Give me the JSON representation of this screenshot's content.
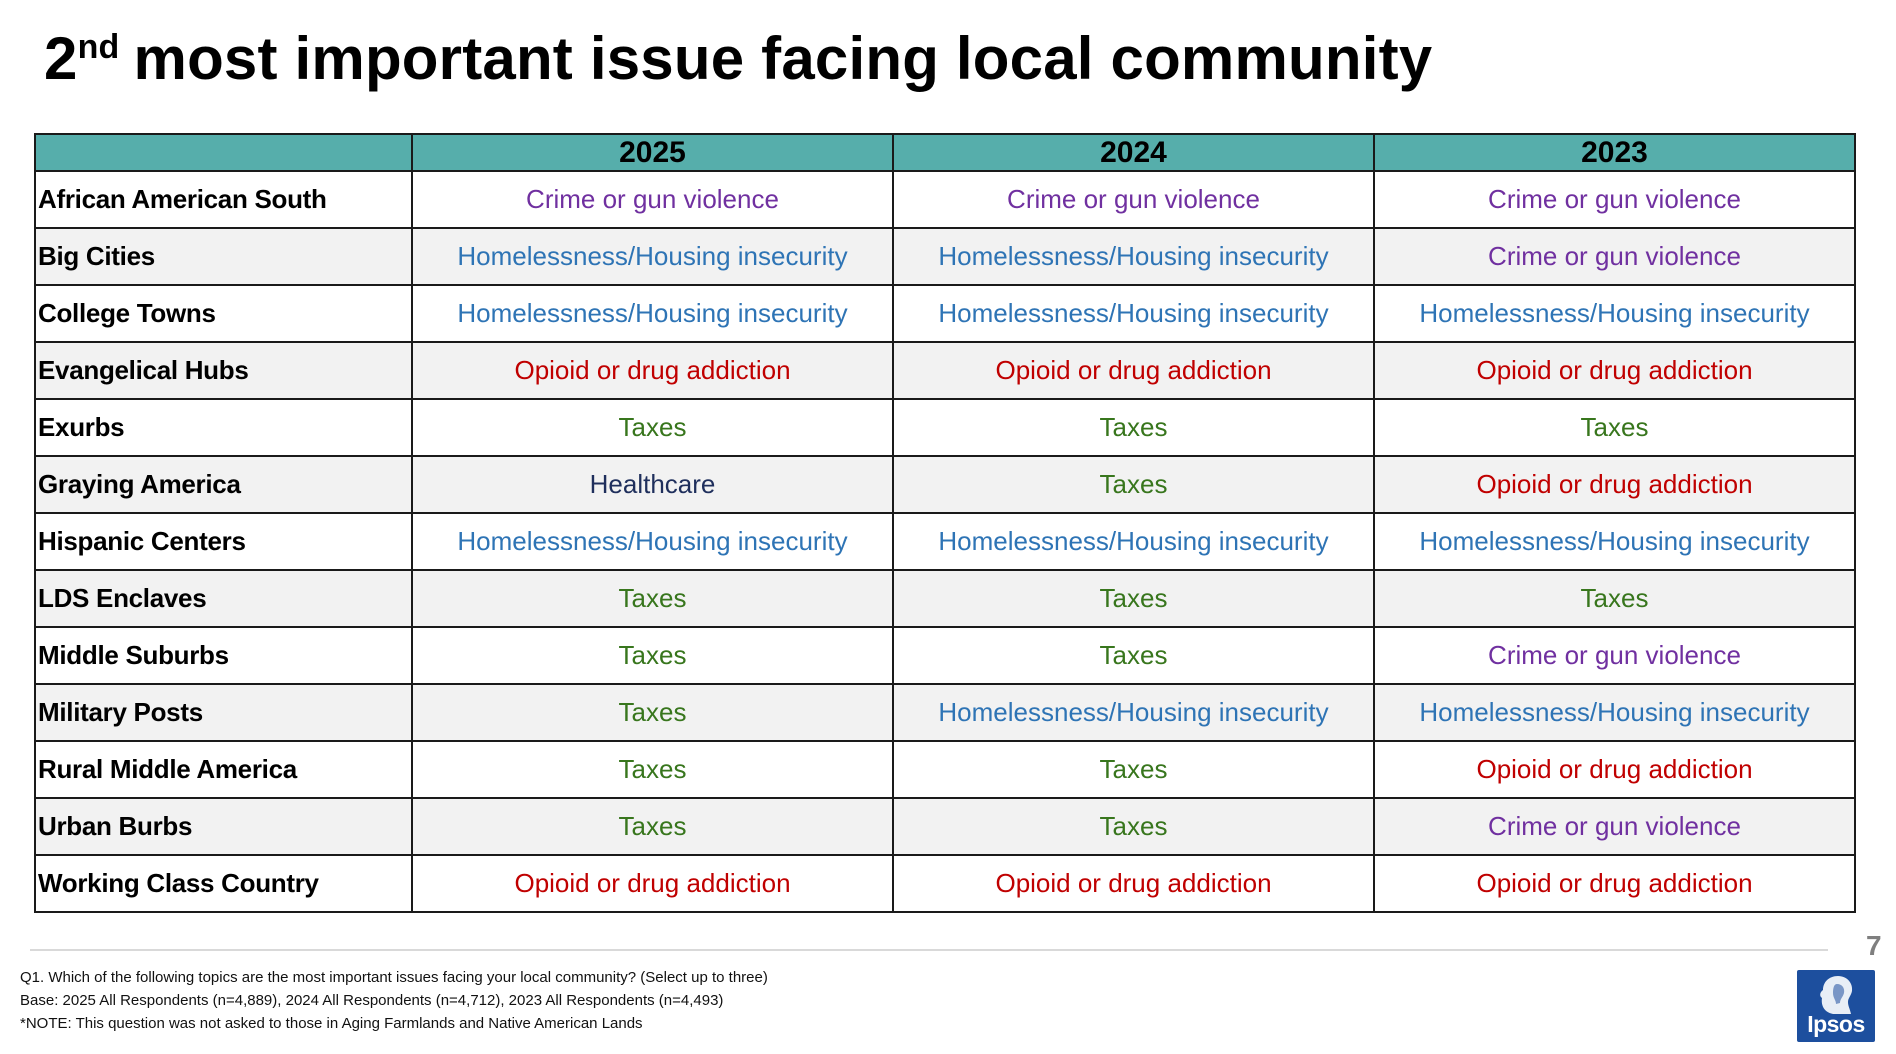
{
  "title": {
    "main": "2",
    "superscript": "nd",
    "rest": "most important issue facing local community"
  },
  "table": {
    "headers": [
      "2025",
      "2024",
      "2023"
    ],
    "rows": [
      {
        "label": "African American South",
        "values": [
          "Crime or gun violence",
          "Crime or gun violence",
          "Crime or gun violence"
        ]
      },
      {
        "label": "Big Cities",
        "values": [
          "Homelessness/Housing insecurity",
          "Homelessness/Housing insecurity",
          "Crime or gun violence"
        ]
      },
      {
        "label": "College Towns",
        "values": [
          "Homelessness/Housing insecurity",
          "Homelessness/Housing insecurity",
          "Homelessness/Housing insecurity"
        ]
      },
      {
        "label": "Evangelical Hubs",
        "values": [
          "Opioid or drug addiction",
          "Opioid or drug addiction",
          "Opioid or drug addiction"
        ]
      },
      {
        "label": "Exurbs",
        "values": [
          "Taxes",
          "Taxes",
          "Taxes"
        ]
      },
      {
        "label": "Graying America",
        "values": [
          "Healthcare",
          "Taxes",
          "Opioid or drug addiction"
        ]
      },
      {
        "label": "Hispanic Centers",
        "values": [
          "Homelessness/Housing insecurity",
          "Homelessness/Housing insecurity",
          "Homelessness/Housing insecurity"
        ]
      },
      {
        "label": "LDS Enclaves",
        "values": [
          "Taxes",
          "Taxes",
          "Taxes"
        ]
      },
      {
        "label": "Middle Suburbs",
        "values": [
          "Taxes",
          "Taxes",
          "Crime or gun violence"
        ]
      },
      {
        "label": "Military Posts",
        "values": [
          "Taxes",
          "Homelessness/Housing insecurity",
          "Homelessness/Housing insecurity"
        ]
      },
      {
        "label": "Rural Middle America",
        "values": [
          "Taxes",
          "Taxes",
          "Opioid or drug addiction"
        ]
      },
      {
        "label": "Urban Burbs",
        "values": [
          "Taxes",
          "Taxes",
          "Crime or gun violence"
        ]
      },
      {
        "label": "Working Class Country",
        "values": [
          "Opioid or drug addiction",
          "Opioid or drug addiction",
          "Opioid or drug addiction"
        ]
      }
    ]
  },
  "issue_colors": {
    "Crime or gun violence": "#7030a0",
    "Homelessness/Housing insecurity": "#2e74b5",
    "Opioid or drug addiction": "#c00000",
    "Taxes": "#38761d",
    "Healthcare": "#1f2f5c"
  },
  "header_color": "#56aeab",
  "footer": {
    "page_number": "7",
    "notes": [
      "Q1. Which of the following topics are the most important issues facing your local community? (Select up to three)",
      "Base: 2025 All Respondents (n=4,889), 2024 All Respondents (n=4,712), 2023 All Respondents (n=4,493)",
      "*NOTE: This question was not asked to those in Aging Farmlands and Native American Lands"
    ]
  },
  "logo": {
    "text": "Ipsos",
    "color": "#1d4f9e",
    "icon": "ipsos-head-icon"
  }
}
